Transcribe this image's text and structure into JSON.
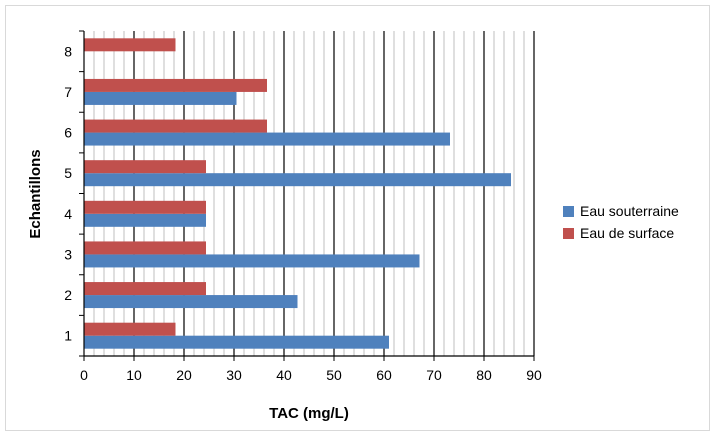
{
  "chart_data": {
    "type": "bar",
    "orientation": "horizontal",
    "categories": [
      "1",
      "2",
      "3",
      "4",
      "5",
      "6",
      "7",
      "8"
    ],
    "series": [
      {
        "name": "Eau souterraine",
        "color": "#4f81bd",
        "values": [
          61,
          42.7,
          67.1,
          24.4,
          85.4,
          73.2,
          30.5,
          null
        ]
      },
      {
        "name": "Eau de surface",
        "color": "#c0504d",
        "values": [
          18.3,
          24.4,
          24.4,
          24.4,
          24.4,
          36.6,
          36.6,
          18.3
        ]
      }
    ],
    "xlabel": "TAC (mg/L)",
    "ylabel": "Echantillons",
    "xlim": [
      0,
      90
    ],
    "x_ticks": [
      "0",
      "10",
      "20",
      "30",
      "40",
      "50",
      "60",
      "70",
      "80",
      "90"
    ],
    "major_grid_step": 10,
    "minor_grid_step": 2,
    "grid": true,
    "legend_position": "right"
  }
}
